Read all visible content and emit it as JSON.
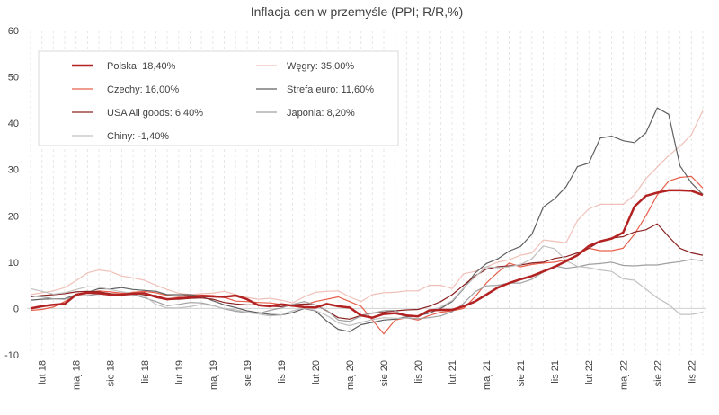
{
  "chart_data": {
    "type": "line",
    "title": "Inflacja cen w przemyśle (PPI; R/R,%)",
    "xlabel": "",
    "ylabel": "",
    "ylim": [
      -10,
      60
    ],
    "y_ticks": [
      "-10",
      "0",
      "10",
      "20",
      "30",
      "40",
      "50",
      "60"
    ],
    "x_start": "2018-01",
    "x_end": "2022-12",
    "x": [
      "2018-01",
      "2018-02",
      "2018-03",
      "2018-04",
      "2018-05",
      "2018-06",
      "2018-07",
      "2018-08",
      "2018-09",
      "2018-10",
      "2018-11",
      "2018-12",
      "2019-01",
      "2019-02",
      "2019-03",
      "2019-04",
      "2019-05",
      "2019-06",
      "2019-07",
      "2019-08",
      "2019-09",
      "2019-10",
      "2019-11",
      "2019-12",
      "2020-01",
      "2020-02",
      "2020-03",
      "2020-04",
      "2020-05",
      "2020-06",
      "2020-07",
      "2020-08",
      "2020-09",
      "2020-10",
      "2020-11",
      "2020-12",
      "2021-01",
      "2021-02",
      "2021-03",
      "2021-04",
      "2021-05",
      "2021-06",
      "2021-07",
      "2021-08",
      "2021-09",
      "2021-10",
      "2021-11",
      "2021-12",
      "2022-01",
      "2022-02",
      "2022-03",
      "2022-04",
      "2022-05",
      "2022-06",
      "2022-07",
      "2022-08",
      "2022-09",
      "2022-10",
      "2022-11",
      "2022-12"
    ],
    "x_tick_labels": [
      "lut 18",
      "maj 18",
      "sie 18",
      "lis 18",
      "lut 19",
      "maj 19",
      "sie 19",
      "lis 19",
      "lut 20",
      "maj 20",
      "sie 20",
      "lis 20",
      "lut 21",
      "maj 21",
      "sie 21",
      "lis 21",
      "lut 22",
      "maj 22",
      "sie 22",
      "lis 22"
    ],
    "grid": "vertical dashed",
    "legend_position": "top-left",
    "legend_columns": 2,
    "series": [
      {
        "name": "Polska: 18,40%",
        "color": "#b22222",
        "width": 2.5,
        "values": [
          0,
          0.5,
          0.8,
          1,
          3,
          3.4,
          3.3,
          3,
          3,
          3.2,
          3.3,
          2.5,
          2,
          2.2,
          2.4,
          2.7,
          2.6,
          2.5,
          2.8,
          2,
          0.7,
          0.5,
          0.9,
          0.6,
          0.3,
          0.2,
          1,
          0.5,
          0.2,
          -1.5,
          -2,
          -1.2,
          -1,
          -1.5,
          -1.7,
          -0.4,
          -0.3,
          -0.3,
          0.5,
          1.5,
          3,
          4.5,
          5.5,
          6.3,
          7,
          8,
          9,
          10.2,
          11.5,
          13.5,
          14.5,
          15.1,
          16.4,
          22,
          24.3,
          25,
          25.5,
          25.5,
          25.4,
          24.5
        ]
      },
      {
        "name": "Węgry: 35,00%",
        "color": "#f0c0b8",
        "width": 1.2,
        "values": [
          3,
          3.4,
          3.8,
          4.5,
          6,
          7.7,
          8.3,
          8,
          7,
          6.6,
          6.1,
          5,
          4.1,
          3.3,
          3,
          3.2,
          3.3,
          3.7,
          3,
          2.4,
          2,
          2.2,
          1.8,
          1.2,
          2.5,
          3.5,
          3.7,
          3.8,
          2.5,
          1.5,
          3,
          3.4,
          3.5,
          3.8,
          3.8,
          5,
          5,
          4.3,
          7.5,
          8,
          9,
          10,
          10.5,
          11.5,
          12,
          14.8,
          14.5,
          14.2,
          19,
          21.5,
          22.5,
          22.5,
          22.5,
          24.5,
          28,
          30.5,
          33,
          35,
          37.5,
          42.7
        ]
      },
      {
        "name": "Czechy: 16,00%",
        "color": "#e8604c",
        "width": 1.2,
        "values": [
          -0.4,
          -0.2,
          0.3,
          1.5,
          2.8,
          3.5,
          3.8,
          3.6,
          3.3,
          3.5,
          3.7,
          3.4,
          2.8,
          2.6,
          2.9,
          2.9,
          2.8,
          2.4,
          1.6,
          1.5,
          1.3,
          1.2,
          0.9,
          0.5,
          0.8,
          1.5,
          2,
          2.5,
          1.5,
          0.5,
          -2.5,
          -5.5,
          -2.5,
          -2,
          -2.5,
          -1.5,
          -0.8,
          -0.5,
          0,
          2.5,
          5.5,
          7.8,
          9.8,
          9,
          9.5,
          9.8,
          10,
          10.5,
          11.5,
          13,
          12.5,
          12.5,
          13,
          16,
          20,
          24.5,
          27.5,
          28.3,
          28.5,
          26
        ]
      },
      {
        "name": "Strefa euro: 11,60%",
        "color": "#606060",
        "width": 1.2,
        "values": [
          1.8,
          2,
          2.1,
          2.1,
          3,
          3.5,
          4.3,
          4.2,
          4.5,
          4.1,
          3.9,
          3.7,
          3,
          3,
          3,
          2.6,
          1.7,
          0.8,
          0.2,
          -0.5,
          -0.9,
          -1.3,
          -1.4,
          -0.9,
          0,
          -0.5,
          -2.7,
          -4.5,
          -5,
          -3.5,
          -3,
          -2.5,
          -2.3,
          -1.8,
          -1.6,
          -1,
          0,
          1.5,
          4.3,
          7.6,
          9.7,
          10.7,
          12.4,
          13.4,
          16,
          21.9,
          23.7,
          26.3,
          30.6,
          31.4,
          36.8,
          37.2,
          36.2,
          35.8,
          37.9,
          43.3,
          41.9,
          30.8,
          27.1,
          24.6
        ]
      },
      {
        "name": "USA All goods: 6,40%",
        "color": "#8b2020",
        "width": 1.2,
        "values": [
          2.5,
          2.8,
          3,
          3.2,
          3.6,
          3.7,
          3.6,
          3.2,
          3,
          3.1,
          2.9,
          2.8,
          2,
          2,
          2.2,
          2.3,
          2,
          1.3,
          1,
          0.8,
          0.8,
          0.5,
          0.4,
          0.8,
          1,
          0.8,
          -0.5,
          -2,
          -2.3,
          -1.5,
          -1,
          -0.8,
          -0.5,
          -0.3,
          -0.2,
          0.5,
          1.5,
          3,
          5,
          7,
          8.5,
          9,
          9.2,
          9.4,
          9.8,
          10,
          10.8,
          11.2,
          12,
          13,
          14.5,
          15.2,
          15.5,
          16.5,
          17,
          18.3,
          15.5,
          13,
          12,
          11.5
        ]
      },
      {
        "name": "Japonia: 8,20%",
        "color": "#a0a0a0",
        "width": 1.2,
        "values": [
          2.7,
          2.5,
          2.1,
          2,
          2.7,
          2.8,
          3.1,
          3,
          3,
          3,
          2.3,
          1.5,
          0.6,
          0.9,
          1.3,
          1.2,
          0.7,
          -0.1,
          -0.6,
          -0.9,
          -1.1,
          -0.4,
          0.1,
          0.9,
          1.5,
          0.8,
          -0.4,
          -2.5,
          -2.8,
          -1.6,
          -1,
          -0.5,
          -0.4,
          -2.1,
          -2.2,
          -2,
          -1.6,
          -0.7,
          1.1,
          3.6,
          4.9,
          5,
          5.5,
          5.5,
          6.3,
          7.9,
          9.2,
          8.7,
          9,
          9.5,
          9.7,
          10,
          9.3,
          9.2,
          9.4,
          9.4,
          9.8,
          10.1,
          10.6,
          10.3
        ]
      },
      {
        "name": "Chiny: -1,40%",
        "color": "#c0c0c0",
        "width": 1.2,
        "values": [
          4.3,
          3.7,
          3.1,
          3.4,
          4.1,
          4.7,
          4.6,
          4.1,
          3.6,
          3.3,
          2.7,
          0.9,
          0.1,
          0.1,
          0.4,
          0.9,
          0.6,
          0,
          -0.3,
          -0.8,
          -1.2,
          -1.6,
          -1.4,
          -0.5,
          0.1,
          -0.4,
          -1.5,
          -3.1,
          -3.7,
          -3,
          -2.4,
          -2,
          -2.1,
          -2.1,
          -1.5,
          -0.4,
          0.3,
          1.7,
          4.4,
          6.8,
          9,
          8.8,
          9,
          9.5,
          10.7,
          13.5,
          12.9,
          10.3,
          9.1,
          8.8,
          8.3,
          8,
          6.4,
          6.1,
          4.2,
          2.3,
          0.9,
          -1.3,
          -1.3,
          -0.8
        ]
      }
    ]
  }
}
